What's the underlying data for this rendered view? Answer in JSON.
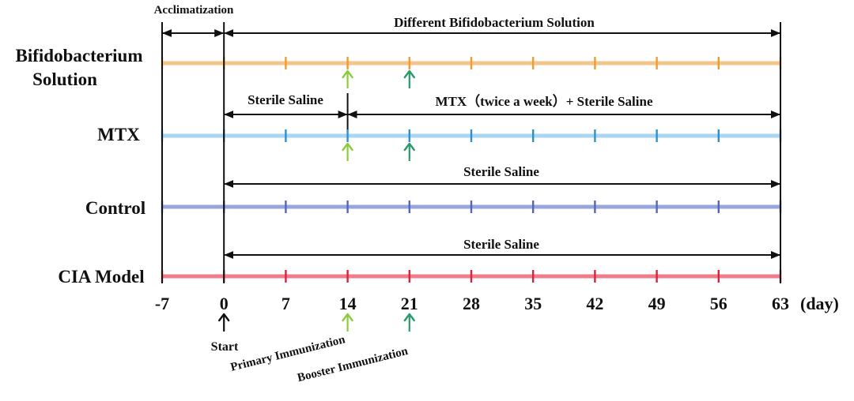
{
  "days": [
    "-7",
    "0",
    "7",
    "14",
    "21",
    "28",
    "35",
    "42",
    "49",
    "56",
    "63"
  ],
  "day_unit": "(day)",
  "groups": [
    {
      "label_lines": [
        "Bifidobacterium",
        "Solution"
      ],
      "color": "#f5c48c",
      "tick_color": "#f29a2e"
    },
    {
      "label_lines": [
        "MTX"
      ],
      "color": "#a9d6f0",
      "tick_color": "#2e8fcf"
    },
    {
      "label_lines": [
        "Control"
      ],
      "color": "#98a6dc",
      "tick_color": "#5566b8"
    },
    {
      "label_lines": [
        "CIA Model"
      ],
      "color": "#f07c8c",
      "tick_color": "#d8243c"
    }
  ],
  "periods": {
    "acclimatization": "Acclimatization",
    "bifido": "Different Bifidobacterium Solution",
    "mtx_saline": "Sterile Saline",
    "mtx_treatment": "MTX（twice a week）+ Sterile Saline",
    "control": "Sterile Saline",
    "cia": "Sterile Saline"
  },
  "events": {
    "start": "Start",
    "primary": "Primary Immunization",
    "booster": "Booster Immunization"
  },
  "colors": {
    "primary_arrow": "#8ccc3c",
    "booster_arrow": "#2a9a6a",
    "line": "#111111"
  }
}
